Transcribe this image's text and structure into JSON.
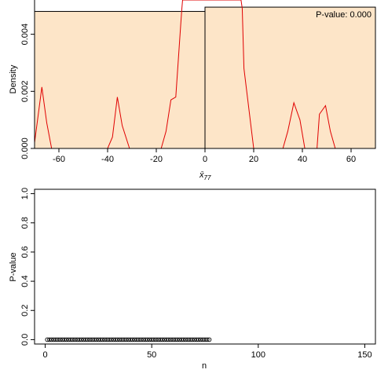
{
  "chart_data": [
    {
      "type": "histogram",
      "xlabel": "x̄",
      "xlabel_subscript": "77",
      "ylabel": "Density",
      "xlim": [
        -70,
        70
      ],
      "ylim": [
        0,
        0.0052
      ],
      "xticks": [
        -60,
        -40,
        -20,
        0,
        20,
        40,
        60
      ],
      "yticks": [
        0.0,
        0.002,
        0.004
      ],
      "ytick_labels": [
        "0.000",
        "0.002",
        "0.004"
      ],
      "annotation": "P-value: 0.000",
      "colors": {
        "bars": "#fde5c8",
        "density_line": "#e00000",
        "outline": "#000000"
      },
      "bars": [
        {
          "x0": -70,
          "x1": 0,
          "density": 0.0048
        },
        {
          "x0": 0,
          "x1": 70,
          "density": 0.00495
        }
      ],
      "density_curve": {
        "x": [
          -70,
          -67,
          -65,
          -63,
          -61,
          -40,
          -38,
          -36,
          -34,
          -31,
          -20,
          -18,
          -16,
          -14,
          -12,
          -10,
          -9.5,
          -9.2,
          14.8,
          15.3,
          16,
          20,
          32,
          34,
          36.5,
          39,
          41,
          44,
          46,
          47,
          49.5,
          51.5,
          53.5,
          70
        ],
        "y": [
          0.0002,
          0.00215,
          0.0009,
          0.0,
          0.0,
          0.0,
          0.0004,
          0.0018,
          0.0008,
          0.0,
          0.0,
          0.0,
          0.0006,
          0.0017,
          0.0018,
          0.0043,
          0.0049,
          0.0052,
          0.0052,
          0.0049,
          0.0028,
          0.0,
          0.0,
          0.0006,
          0.0016,
          0.001,
          0.0,
          0.0,
          0.0,
          0.0012,
          0.0015,
          0.0006,
          0.0,
          0.0
        ]
      }
    },
    {
      "type": "scatter",
      "xlabel": "n",
      "ylabel": "P-value",
      "xlim": [
        -5,
        155
      ],
      "ylim": [
        -0.03,
        1.03
      ],
      "xticks": [
        0,
        50,
        100,
        150
      ],
      "yticks": [
        0.0,
        0.2,
        0.4,
        0.6,
        0.8,
        1.0
      ],
      "ytick_labels": [
        "0.0",
        "0.2",
        "0.4",
        "0.6",
        "0.8",
        "1.0"
      ],
      "n_points": 77,
      "y_value": 0.0,
      "marker": "open-circle"
    }
  ]
}
